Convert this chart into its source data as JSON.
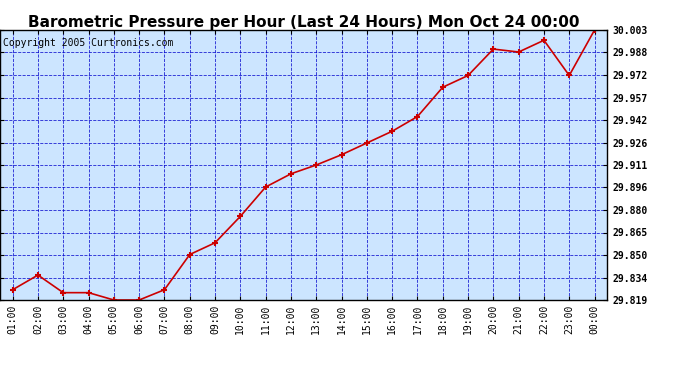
{
  "title": "Barometric Pressure per Hour (Last 24 Hours) Mon Oct 24 00:00",
  "copyright": "Copyright 2005 Curtronics.com",
  "x_labels": [
    "01:00",
    "02:00",
    "03:00",
    "04:00",
    "05:00",
    "06:00",
    "07:00",
    "08:00",
    "09:00",
    "10:00",
    "11:00",
    "12:00",
    "13:00",
    "14:00",
    "15:00",
    "16:00",
    "17:00",
    "18:00",
    "19:00",
    "20:00",
    "21:00",
    "22:00",
    "23:00",
    "00:00"
  ],
  "y_values": [
    29.826,
    29.836,
    29.824,
    29.824,
    29.819,
    29.819,
    29.826,
    29.85,
    29.858,
    29.876,
    29.896,
    29.905,
    29.911,
    29.918,
    29.926,
    29.934,
    29.944,
    29.964,
    29.972,
    29.99,
    29.988,
    29.996,
    29.972,
    30.003
  ],
  "y_min": 29.819,
  "y_max": 30.003,
  "y_ticks": [
    29.819,
    29.834,
    29.85,
    29.865,
    29.88,
    29.896,
    29.911,
    29.926,
    29.942,
    29.957,
    29.972,
    29.988,
    30.003
  ],
  "line_color": "#cc0000",
  "marker_color": "#cc0000",
  "bg_color": "#cce5ff",
  "fig_bg_color": "#ffffff",
  "grid_color": "#0000cc",
  "title_fontsize": 11,
  "axis_fontsize": 7,
  "copyright_fontsize": 7
}
